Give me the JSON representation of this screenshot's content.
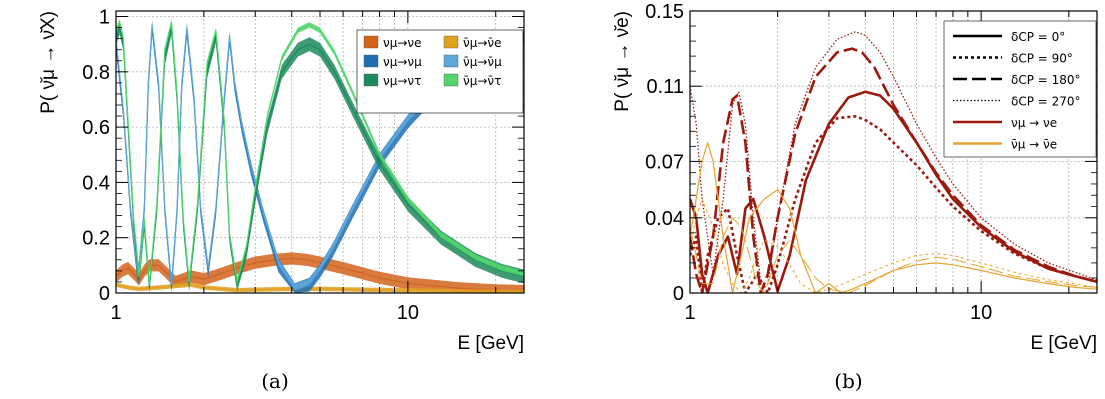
{
  "chart_data": [
    {
      "id": "a",
      "type": "line",
      "caption": "(a)",
      "xlabel": "E [GeV]",
      "ylabel": "P( ν̆μ → ν̆X)",
      "xscale": "log",
      "xlim": [
        1,
        25
      ],
      "ylim": [
        0,
        1.02
      ],
      "grid": true,
      "legend_position": "top-right",
      "xticks": [
        1,
        10
      ],
      "yticks": [
        0,
        0.2,
        0.4,
        0.6,
        0.8,
        1
      ],
      "ytick_labels": [
        "0",
        "0.2",
        "0.4",
        "0.6",
        "0.8",
        "1"
      ],
      "xtick_labels": [
        "1",
        "10"
      ],
      "series": [
        {
          "name": "νμ→νe",
          "color": "#d2641c",
          "band": 0.022,
          "x": [
            1.0,
            1.05,
            1.1,
            1.15,
            1.2,
            1.25,
            1.3,
            1.4,
            1.5,
            1.6,
            1.7,
            1.8,
            2.0,
            2.3,
            2.6,
            3.0,
            3.5,
            4.0,
            4.5,
            5.0,
            6.0,
            8.0,
            10.0,
            15.0,
            20.0,
            25.0
          ],
          "y": [
            0.06,
            0.08,
            0.09,
            0.07,
            0.05,
            0.08,
            0.1,
            0.1,
            0.07,
            0.04,
            0.05,
            0.06,
            0.05,
            0.07,
            0.09,
            0.11,
            0.12,
            0.125,
            0.12,
            0.11,
            0.09,
            0.055,
            0.035,
            0.017,
            0.01,
            0.007
          ]
        },
        {
          "name": "ν̄μ→ν̄e",
          "color": "#e1a020",
          "band": 0.008,
          "x": [
            1.0,
            1.1,
            1.2,
            1.4,
            1.6,
            1.8,
            2.0,
            2.3,
            2.6,
            3.0,
            4.0,
            5.0,
            7.0,
            10.0,
            15.0,
            20.0,
            25.0
          ],
          "y": [
            0.03,
            0.02,
            0.015,
            0.02,
            0.025,
            0.03,
            0.02,
            0.015,
            0.01,
            0.012,
            0.015,
            0.015,
            0.012,
            0.01,
            0.006,
            0.004,
            0.003
          ]
        },
        {
          "name": "νμ→νμ",
          "color": "#1f6fb0",
          "band": 0.025,
          "x": [
            1.0,
            1.06,
            1.12,
            1.19,
            1.25,
            1.29,
            1.33,
            1.4,
            1.47,
            1.55,
            1.62,
            1.68,
            1.75,
            1.85,
            1.95,
            2.07,
            2.2,
            2.35,
            2.45,
            2.55,
            2.7,
            2.9,
            3.2,
            3.6,
            4.1,
            4.6,
            5.0,
            5.5,
            6.5,
            8.0,
            10.0,
            13.0,
            17.0,
            21.0,
            25.0
          ],
          "y": [
            0.9,
            0.65,
            0.3,
            0.05,
            0.3,
            0.75,
            0.96,
            0.75,
            0.3,
            0.02,
            0.3,
            0.75,
            0.95,
            0.7,
            0.3,
            0.08,
            0.3,
            0.7,
            0.92,
            0.75,
            0.6,
            0.45,
            0.28,
            0.1,
            0.01,
            0.03,
            0.08,
            0.15,
            0.3,
            0.48,
            0.62,
            0.75,
            0.84,
            0.89,
            0.92
          ]
        },
        {
          "name": "ν̄μ→ν̄μ",
          "color": "#5ea6dc",
          "band": 0.012,
          "x": [
            1.0,
            1.06,
            1.12,
            1.19,
            1.25,
            1.29,
            1.33,
            1.4,
            1.47,
            1.55,
            1.62,
            1.68,
            1.75,
            1.85,
            1.95,
            2.07,
            2.2,
            2.35,
            2.45,
            2.55,
            2.7,
            2.9,
            3.2,
            3.6,
            4.1,
            4.6,
            5.0,
            5.5,
            6.5,
            8.0,
            10.0,
            13.0,
            17.0,
            21.0,
            25.0
          ],
          "y": [
            0.92,
            0.66,
            0.31,
            0.06,
            0.31,
            0.76,
            0.97,
            0.76,
            0.31,
            0.03,
            0.31,
            0.76,
            0.96,
            0.71,
            0.31,
            0.09,
            0.31,
            0.71,
            0.93,
            0.76,
            0.61,
            0.46,
            0.29,
            0.11,
            0.02,
            0.04,
            0.09,
            0.16,
            0.31,
            0.49,
            0.63,
            0.76,
            0.85,
            0.9,
            0.93
          ]
        },
        {
          "name": "νμ→ντ",
          "color": "#1c8a5c",
          "band": 0.025,
          "x": [
            1.0,
            1.03,
            1.06,
            1.1,
            1.15,
            1.2,
            1.25,
            1.3,
            1.38,
            1.47,
            1.55,
            1.62,
            1.7,
            1.78,
            1.9,
            2.05,
            2.2,
            2.35,
            2.45,
            2.6,
            2.8,
            3.0,
            3.3,
            3.7,
            4.2,
            4.6,
            5.0,
            5.6,
            6.5,
            8.0,
            10.0,
            13.0,
            17.0,
            21.0,
            25.0
          ],
          "y": [
            0.92,
            0.96,
            0.9,
            0.6,
            0.25,
            0.05,
            0.25,
            0.02,
            0.3,
            0.85,
            0.96,
            0.7,
            0.25,
            0.03,
            0.3,
            0.8,
            0.93,
            0.6,
            0.2,
            0.03,
            0.15,
            0.35,
            0.6,
            0.8,
            0.88,
            0.9,
            0.88,
            0.8,
            0.66,
            0.47,
            0.32,
            0.2,
            0.12,
            0.08,
            0.06
          ]
        },
        {
          "name": "ν̄μ→ν̄τ",
          "color": "#52d66c",
          "band": 0.01,
          "x": [
            1.0,
            1.03,
            1.06,
            1.1,
            1.15,
            1.2,
            1.25,
            1.3,
            1.38,
            1.47,
            1.55,
            1.62,
            1.7,
            1.78,
            1.9,
            2.05,
            2.2,
            2.35,
            2.45,
            2.6,
            2.8,
            3.0,
            3.3,
            3.7,
            4.2,
            4.6,
            5.0,
            5.6,
            6.5,
            8.0,
            10.0,
            13.0,
            17.0,
            21.0,
            25.0
          ],
          "y": [
            0.95,
            0.98,
            0.92,
            0.62,
            0.27,
            0.06,
            0.27,
            0.03,
            0.32,
            0.88,
            0.98,
            0.72,
            0.27,
            0.04,
            0.32,
            0.83,
            0.95,
            0.62,
            0.21,
            0.04,
            0.17,
            0.38,
            0.64,
            0.85,
            0.95,
            0.97,
            0.95,
            0.87,
            0.72,
            0.5,
            0.34,
            0.21,
            0.13,
            0.09,
            0.07
          ]
        }
      ]
    },
    {
      "id": "b",
      "type": "line",
      "caption": "(b)",
      "xlabel": "E [GeV]",
      "ylabel": "P( ν̆μ → ν̆e)",
      "xscale": "log",
      "xlim": [
        1,
        25
      ],
      "ylim": [
        0,
        0.15
      ],
      "grid": true,
      "legend_position": "top-right",
      "xticks": [
        1,
        10
      ],
      "yticks": [
        0,
        0.04,
        0.07,
        0.11,
        0.15
      ],
      "ytick_labels": [
        "0",
        "0.04",
        "0.07",
        "0.11",
        "0.15"
      ],
      "xtick_labels": [
        "1",
        "10"
      ],
      "legend": [
        {
          "label": "δCP =  0°",
          "style": "solid",
          "color": "#000000"
        },
        {
          "label": "δCP = 90°",
          "style": "dotted",
          "color": "#000000"
        },
        {
          "label": "δCP = 180°",
          "style": "dashed",
          "color": "#000000"
        },
        {
          "label": "δCP = 270°",
          "style": "finedot",
          "color": "#000000"
        },
        {
          "label": "νμ → νe",
          "style": "solid",
          "color": "#9b1a10"
        },
        {
          "label": "ν̄μ → ν̄e",
          "style": "solid",
          "color": "#e8a430"
        }
      ],
      "series": [
        {
          "name": "",
          "color": "#9b1a10",
          "style": "solid",
          "width": 2.6,
          "x": [
            1.0,
            1.05,
            1.1,
            1.15,
            1.25,
            1.35,
            1.45,
            1.55,
            1.65,
            1.8,
            2.0,
            2.2,
            2.5,
            3.0,
            3.5,
            4.0,
            4.5,
            5.0,
            6.0,
            7.0,
            8.0,
            10.0,
            13.0,
            17.0,
            21.0,
            25.0
          ],
          "y": [
            0.05,
            0.04,
            0.01,
            0.0,
            0.02,
            0.03,
            0.01,
            0.045,
            0.05,
            0.03,
            0.001,
            0.02,
            0.06,
            0.09,
            0.104,
            0.107,
            0.105,
            0.098,
            0.08,
            0.063,
            0.05,
            0.035,
            0.022,
            0.013,
            0.009,
            0.006
          ]
        },
        {
          "name": "",
          "color": "#9b1a10",
          "style": "dotted",
          "width": 2.6,
          "x": [
            1.0,
            1.05,
            1.1,
            1.15,
            1.25,
            1.35,
            1.45,
            1.55,
            1.7,
            1.85,
            2.0,
            2.3,
            2.7,
            3.2,
            3.7,
            4.0,
            4.5,
            5.0,
            6.0,
            7.0,
            8.0,
            10.0,
            13.0,
            17.0,
            21.0,
            25.0
          ],
          "y": [
            0.02,
            0.03,
            0.0,
            0.02,
            0.04,
            0.045,
            0.02,
            0.0,
            0.01,
            0.0,
            0.015,
            0.05,
            0.08,
            0.093,
            0.094,
            0.092,
            0.087,
            0.08,
            0.068,
            0.056,
            0.046,
            0.033,
            0.021,
            0.013,
            0.009,
            0.006
          ]
        },
        {
          "name": "",
          "color": "#9b1a10",
          "style": "dashed",
          "width": 2.6,
          "x": [
            1.0,
            1.05,
            1.1,
            1.2,
            1.3,
            1.4,
            1.45,
            1.55,
            1.65,
            1.75,
            1.85,
            2.0,
            2.3,
            2.7,
            3.2,
            3.6,
            3.9,
            4.3,
            5.0,
            6.0,
            7.0,
            8.0,
            10.0,
            13.0,
            17.0,
            21.0,
            25.0
          ],
          "y": [
            0.03,
            0.01,
            0.0,
            0.03,
            0.08,
            0.103,
            0.105,
            0.08,
            0.03,
            0.0,
            0.01,
            0.04,
            0.085,
            0.115,
            0.128,
            0.13,
            0.128,
            0.12,
            0.1,
            0.08,
            0.064,
            0.052,
            0.036,
            0.023,
            0.014,
            0.009,
            0.006
          ]
        },
        {
          "name": "",
          "color": "#9b1a10",
          "style": "finedot",
          "width": 1.3,
          "x": [
            1.0,
            1.05,
            1.1,
            1.2,
            1.3,
            1.4,
            1.47,
            1.55,
            1.65,
            1.75,
            1.85,
            2.0,
            2.3,
            2.7,
            3.2,
            3.7,
            4.0,
            4.5,
            5.0,
            6.0,
            7.0,
            8.0,
            10.0,
            13.0,
            17.0,
            21.0,
            25.0
          ],
          "y": [
            0.11,
            0.09,
            0.05,
            0.01,
            0.05,
            0.1,
            0.107,
            0.09,
            0.04,
            0.005,
            0.005,
            0.04,
            0.09,
            0.12,
            0.135,
            0.139,
            0.137,
            0.128,
            0.115,
            0.09,
            0.072,
            0.058,
            0.04,
            0.026,
            0.016,
            0.011,
            0.007
          ]
        },
        {
          "name": "",
          "color": "#e8a430",
          "style": "solid",
          "width": 1.2,
          "x": [
            1.0,
            1.05,
            1.1,
            1.15,
            1.2,
            1.3,
            1.4,
            1.5,
            1.6,
            1.8,
            2.0,
            2.2,
            2.4,
            2.7,
            3.0,
            3.3,
            3.6,
            4.0,
            5.0,
            6.0,
            7.0,
            8.0,
            10.0,
            13.0,
            17.0,
            21.0,
            25.0
          ],
          "y": [
            0.03,
            0.05,
            0.07,
            0.08,
            0.07,
            0.03,
            0.0,
            0.02,
            0.04,
            0.05,
            0.055,
            0.045,
            0.02,
            0.0,
            0.005,
            0.0,
            0.002,
            0.005,
            0.012,
            0.015,
            0.016,
            0.015,
            0.012,
            0.008,
            0.005,
            0.003,
            0.002
          ]
        },
        {
          "name": "",
          "color": "#e8a430",
          "style": "dashed",
          "width": 1.0,
          "x": [
            1.0,
            1.05,
            1.1,
            1.2,
            1.3,
            1.4,
            1.5,
            1.6,
            1.7,
            1.8,
            2.0,
            2.2,
            2.4,
            2.7,
            3.0,
            3.5,
            4.0,
            5.0,
            6.0,
            7.0,
            8.0,
            10.0,
            13.0,
            17.0,
            21.0,
            25.0
          ],
          "y": [
            0.035,
            0.02,
            0.005,
            0.005,
            0.03,
            0.04,
            0.035,
            0.02,
            0.005,
            0.0,
            0.02,
            0.028,
            0.02,
            0.008,
            0.002,
            0.0,
            0.004,
            0.012,
            0.017,
            0.019,
            0.018,
            0.014,
            0.009,
            0.006,
            0.004,
            0.003
          ]
        },
        {
          "name": "",
          "color": "#e8a430",
          "style": "dotted",
          "width": 1.0,
          "x": [
            1.0,
            1.05,
            1.1,
            1.2,
            1.3,
            1.4,
            1.5,
            1.6,
            1.7,
            1.8,
            2.0,
            2.2,
            2.4,
            2.7,
            3.0,
            3.5,
            4.0,
            5.0,
            6.0,
            7.0,
            8.0,
            10.0,
            13.0,
            17.0,
            21.0,
            25.0
          ],
          "y": [
            0.025,
            0.04,
            0.05,
            0.035,
            0.015,
            0.005,
            0.0,
            0.008,
            0.02,
            0.028,
            0.025,
            0.015,
            0.005,
            0.0,
            0.002,
            0.006,
            0.01,
            0.016,
            0.02,
            0.021,
            0.02,
            0.016,
            0.011,
            0.007,
            0.005,
            0.003
          ]
        }
      ]
    }
  ]
}
